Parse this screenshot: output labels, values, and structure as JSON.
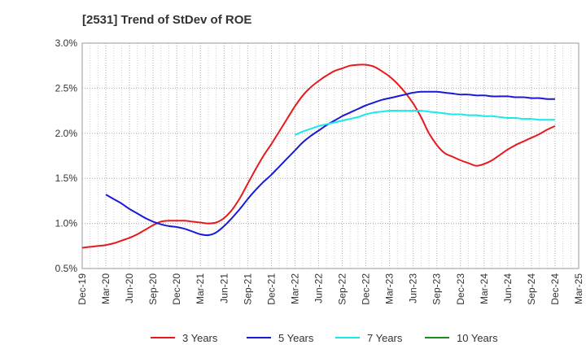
{
  "chart_data": {
    "type": "line",
    "title": "[2531]  Trend of StDev of ROE",
    "xlabel": "",
    "ylabel": "",
    "x_ticks": [
      "Dec-19",
      "Mar-20",
      "Jun-20",
      "Sep-20",
      "Dec-20",
      "Mar-21",
      "Jun-21",
      "Sep-21",
      "Dec-21",
      "Mar-22",
      "Jun-22",
      "Sep-22",
      "Dec-22",
      "Mar-23",
      "Jun-23",
      "Sep-23",
      "Dec-23",
      "Mar-24",
      "Jun-24",
      "Sep-24",
      "Dec-24",
      "Mar-25"
    ],
    "y_ticks": [
      "0.5%",
      "1.0%",
      "1.5%",
      "2.0%",
      "2.5%",
      "3.0%"
    ],
    "ylim": [
      0.5,
      3.0
    ],
    "y_unit": "%",
    "grid": true,
    "legend_position": "bottom",
    "series": [
      {
        "name": "3 Years",
        "color": "#e8191c",
        "x": [
          "Dec-19",
          "Jan-20",
          "Feb-20",
          "Mar-20",
          "Apr-20",
          "May-20",
          "Jun-20",
          "Jul-20",
          "Aug-20",
          "Sep-20",
          "Oct-20",
          "Nov-20",
          "Dec-20",
          "Jan-21",
          "Feb-21",
          "Mar-21",
          "Apr-21",
          "May-21",
          "Jun-21",
          "Jul-21",
          "Aug-21",
          "Sep-21",
          "Oct-21",
          "Nov-21",
          "Dec-21",
          "Jan-22",
          "Feb-22",
          "Mar-22",
          "Apr-22",
          "May-22",
          "Jun-22",
          "Jul-22",
          "Aug-22",
          "Sep-22",
          "Oct-22",
          "Nov-22",
          "Dec-22",
          "Jan-23",
          "Feb-23",
          "Mar-23",
          "Apr-23",
          "May-23",
          "Jun-23",
          "Jul-23",
          "Aug-23",
          "Sep-23",
          "Oct-23",
          "Nov-23",
          "Dec-23",
          "Jan-24",
          "Feb-24",
          "Mar-24",
          "Apr-24",
          "May-24",
          "Jun-24",
          "Jul-24",
          "Aug-24",
          "Sep-24",
          "Oct-24",
          "Nov-24",
          "Dec-24"
        ],
        "values": [
          0.73,
          0.74,
          0.75,
          0.76,
          0.78,
          0.81,
          0.84,
          0.88,
          0.93,
          0.98,
          1.02,
          1.03,
          1.03,
          1.03,
          1.02,
          1.01,
          1.0,
          1.01,
          1.06,
          1.15,
          1.28,
          1.44,
          1.6,
          1.75,
          1.88,
          2.02,
          2.16,
          2.3,
          2.42,
          2.51,
          2.58,
          2.64,
          2.69,
          2.72,
          2.75,
          2.76,
          2.76,
          2.74,
          2.69,
          2.63,
          2.55,
          2.45,
          2.33,
          2.18,
          2.0,
          1.87,
          1.78,
          1.74,
          1.7,
          1.67,
          1.64,
          1.66,
          1.7,
          1.76,
          1.82,
          1.87,
          1.91,
          1.95,
          1.99,
          2.04,
          2.08
        ]
      },
      {
        "name": "5 Years",
        "color": "#1a1ad6",
        "x": [
          "Mar-20",
          "Apr-20",
          "May-20",
          "Jun-20",
          "Jul-20",
          "Aug-20",
          "Sep-20",
          "Oct-20",
          "Nov-20",
          "Dec-20",
          "Jan-21",
          "Feb-21",
          "Mar-21",
          "Apr-21",
          "May-21",
          "Jun-21",
          "Jul-21",
          "Aug-21",
          "Sep-21",
          "Oct-21",
          "Nov-21",
          "Dec-21",
          "Jan-22",
          "Feb-22",
          "Mar-22",
          "Apr-22",
          "May-22",
          "Jun-22",
          "Jul-22",
          "Aug-22",
          "Sep-22",
          "Oct-22",
          "Nov-22",
          "Dec-22",
          "Jan-23",
          "Feb-23",
          "Mar-23",
          "Apr-23",
          "May-23",
          "Jun-23",
          "Jul-23",
          "Aug-23",
          "Sep-23",
          "Oct-23",
          "Nov-23",
          "Dec-23",
          "Jan-24",
          "Feb-24",
          "Mar-24",
          "Apr-24",
          "May-24",
          "Jun-24",
          "Jul-24",
          "Aug-24",
          "Sep-24",
          "Oct-24",
          "Nov-24",
          "Dec-24"
        ],
        "values": [
          1.32,
          1.27,
          1.22,
          1.16,
          1.11,
          1.06,
          1.02,
          0.99,
          0.97,
          0.96,
          0.94,
          0.91,
          0.88,
          0.87,
          0.9,
          0.97,
          1.06,
          1.16,
          1.27,
          1.37,
          1.46,
          1.54,
          1.63,
          1.72,
          1.81,
          1.9,
          1.97,
          2.03,
          2.09,
          2.14,
          2.19,
          2.23,
          2.27,
          2.31,
          2.34,
          2.37,
          2.39,
          2.41,
          2.43,
          2.45,
          2.46,
          2.46,
          2.46,
          2.45,
          2.44,
          2.43,
          2.43,
          2.42,
          2.42,
          2.41,
          2.41,
          2.41,
          2.4,
          2.4,
          2.39,
          2.39,
          2.38,
          2.38
        ]
      },
      {
        "name": "7 Years",
        "color": "#19e8e8",
        "x": [
          "Mar-22",
          "Apr-22",
          "May-22",
          "Jun-22",
          "Jul-22",
          "Aug-22",
          "Sep-22",
          "Oct-22",
          "Nov-22",
          "Dec-22",
          "Jan-23",
          "Feb-23",
          "Mar-23",
          "Apr-23",
          "May-23",
          "Jun-23",
          "Jul-23",
          "Aug-23",
          "Sep-23",
          "Oct-23",
          "Nov-23",
          "Dec-23",
          "Jan-24",
          "Feb-24",
          "Mar-24",
          "Apr-24",
          "May-24",
          "Jun-24",
          "Jul-24",
          "Aug-24",
          "Sep-24",
          "Oct-24",
          "Nov-24",
          "Dec-24"
        ],
        "values": [
          1.98,
          2.02,
          2.05,
          2.08,
          2.1,
          2.12,
          2.14,
          2.16,
          2.18,
          2.21,
          2.23,
          2.24,
          2.25,
          2.25,
          2.25,
          2.25,
          2.25,
          2.24,
          2.23,
          2.22,
          2.21,
          2.21,
          2.2,
          2.2,
          2.19,
          2.19,
          2.18,
          2.17,
          2.17,
          2.16,
          2.16,
          2.15,
          2.15,
          2.15
        ]
      },
      {
        "name": "10 Years",
        "color": "#1a8c1a",
        "x": [],
        "values": []
      }
    ]
  }
}
